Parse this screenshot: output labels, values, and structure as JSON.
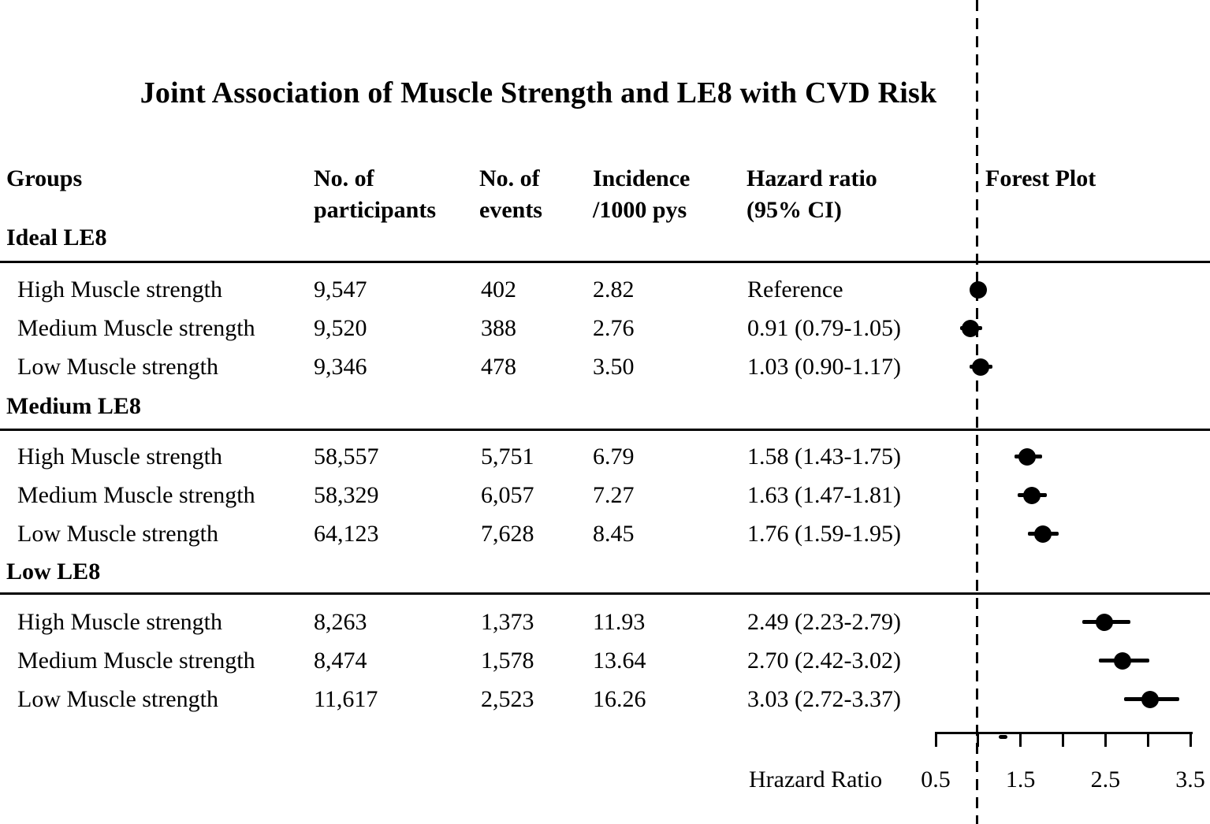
{
  "figure": {
    "title": "Joint Association of Muscle Strength and LE8 with CVD Risk"
  },
  "table": {
    "headers": {
      "groups": "Groups",
      "participants": "No. of\nparticipants",
      "events": "No. of\nevents",
      "incidence": "Incidence\n/1000 pys",
      "hazard_ratio": "Hazard ratio\n(95% CI)",
      "forest_plot": "Forest Plot"
    }
  },
  "chart_data": {
    "type": "forest",
    "title": "Joint Association of Muscle Strength and LE8 with CVD Risk",
    "axis": {
      "label": "Hrazard Ratio",
      "min": 0.5,
      "max": 3.5,
      "ticks": [
        0.5,
        1.0,
        1.5,
        2.0,
        2.5,
        3.0,
        3.5
      ],
      "tick_labels": [
        {
          "v": 0.5,
          "t": "0.5"
        },
        {
          "v": 1.5,
          "t": "1.5"
        },
        {
          "v": 2.5,
          "t": "2.5"
        },
        {
          "v": 3.5,
          "t": "3.5"
        }
      ],
      "reference_line_hr": 1.0
    },
    "sections": [
      {
        "label": "Ideal LE8",
        "rows": [
          {
            "group": "High Muscle strength",
            "participants": "9,547",
            "events": "402",
            "incidence": "2.82",
            "hr_text": "Reference",
            "hr": 1.0,
            "lo": null,
            "hi": null
          },
          {
            "group": "Medium Muscle strength",
            "participants": "9,520",
            "events": "388",
            "incidence": "2.76",
            "hr_text": "0.91 (0.79-1.05)",
            "hr": 0.91,
            "lo": 0.79,
            "hi": 1.05
          },
          {
            "group": "Low Muscle strength",
            "participants": "9,346",
            "events": "478",
            "incidence": "3.50",
            "hr_text": "1.03 (0.90-1.17)",
            "hr": 1.03,
            "lo": 0.9,
            "hi": 1.17
          }
        ]
      },
      {
        "label": "Medium LE8",
        "rows": [
          {
            "group": "High Muscle strength",
            "participants": "58,557",
            "events": "5,751",
            "incidence": "6.79",
            "hr_text": "1.58 (1.43-1.75)",
            "hr": 1.58,
            "lo": 1.43,
            "hi": 1.75
          },
          {
            "group": "Medium Muscle strength",
            "participants": "58,329",
            "events": "6,057",
            "incidence": "7.27",
            "hr_text": "1.63 (1.47-1.81)",
            "hr": 1.63,
            "lo": 1.47,
            "hi": 1.81
          },
          {
            "group": "Low Muscle strength",
            "participants": "64,123",
            "events": "7,628",
            "incidence": "8.45",
            "hr_text": "1.76 (1.59-1.95)",
            "hr": 1.76,
            "lo": 1.59,
            "hi": 1.95
          }
        ]
      },
      {
        "label": "Low LE8",
        "rows": [
          {
            "group": "High Muscle strength",
            "participants": "8,263",
            "events": "1,373",
            "incidence": "11.93",
            "hr_text": "2.49 (2.23-2.79)",
            "hr": 2.49,
            "lo": 2.23,
            "hi": 2.79
          },
          {
            "group": "Medium Muscle strength",
            "participants": "8,474",
            "events": "1,578",
            "incidence": "13.64",
            "hr_text": "2.70 (2.42-3.02)",
            "hr": 2.7,
            "lo": 2.42,
            "hi": 3.02
          },
          {
            "group": "Low Muscle strength",
            "participants": "11,617",
            "events": "2,523",
            "incidence": "16.26",
            "hr_text": "3.03 (2.72-3.37)",
            "hr": 3.03,
            "lo": 2.72,
            "hi": 3.37
          }
        ]
      }
    ],
    "colors": {
      "marker": "#000000",
      "reference_line": "#000000",
      "text": "#000000",
      "background": "#ffffff"
    }
  }
}
